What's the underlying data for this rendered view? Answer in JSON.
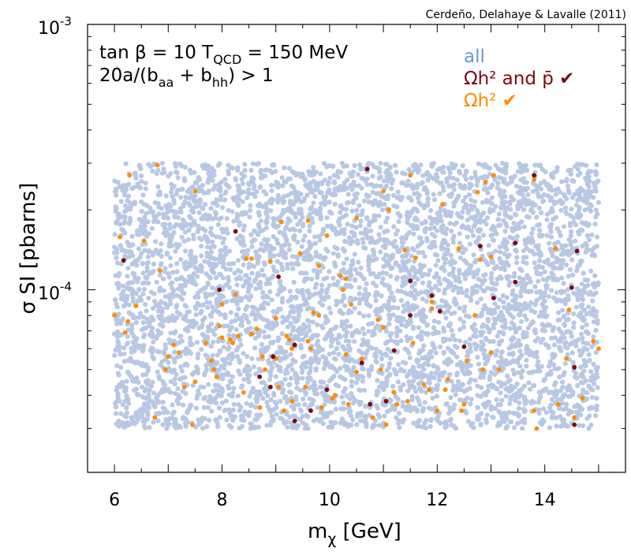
{
  "chart_data": {
    "type": "scatter",
    "credit": "Cerdeño, Delahaye & Lavalle (2011)",
    "annotation": {
      "line1_a": "tan β = 10  T",
      "line1_sub": "QCD",
      "line1_b": " = 150 MeV",
      "line2_a": " 20a/(b",
      "line2_sub1": "aa",
      "line2_mid": " + b",
      "line2_sub2": "hh",
      "line2_b": ") > 1"
    },
    "xlabel_main": "m",
    "xlabel_sub": "χ",
    "xlabel_unit": " [GeV]",
    "ylabel": "σ SI [pbarns]",
    "x_axis": {
      "scale": "linear",
      "range": [
        5.5,
        15.5
      ],
      "ticks": [
        6,
        8,
        10,
        12,
        14
      ],
      "tick_labels": [
        "6",
        "8",
        "10",
        "12",
        "14"
      ]
    },
    "y_axis": {
      "scale": "log",
      "range": [
        2.05e-05,
        0.001
      ],
      "ticks": [
        0.0001,
        0.001
      ],
      "tick_labels": [
        {
          "base": "10",
          "exp": "-4"
        },
        {
          "base": "10",
          "exp": "-3"
        }
      ]
    },
    "series": [
      {
        "name": "all",
        "color": "#b8c8e4",
        "generated": true,
        "count": 5200,
        "x_range": [
          6.0,
          15.0
        ],
        "y_range": [
          3e-05,
          0.0003
        ],
        "y_dist": "log-uniform"
      },
      {
        "name": "Ωh² ✔",
        "color": "#ff8c00",
        "points": [
          [
            6.0,
            8e-05
          ],
          [
            6.1,
            0.000158
          ],
          [
            6.2,
            6.9e-05
          ],
          [
            6.25,
            7.6e-05
          ],
          [
            6.28,
            0.00027
          ],
          [
            6.4,
            8.7e-05
          ],
          [
            6.55,
            0.000153
          ],
          [
            6.75,
            3.3e-05
          ],
          [
            6.8,
            0.000295
          ],
          [
            6.85,
            0.000118
          ],
          [
            6.95,
            5e-05
          ],
          [
            7.0,
            5.6e-05
          ],
          [
            7.1,
            6.2e-05
          ],
          [
            7.2,
            5.8e-05
          ],
          [
            7.3,
            4.3e-05
          ],
          [
            7.45,
            3.1e-05
          ],
          [
            7.5,
            4.5e-05
          ],
          [
            7.5,
            0.000235
          ],
          [
            7.7,
            6.3e-05
          ],
          [
            7.8,
            5.4e-05
          ],
          [
            7.85,
            5e-05
          ],
          [
            7.9,
            4.7e-05
          ],
          [
            7.95,
            7.3e-05
          ],
          [
            8.0,
            6.6e-05
          ],
          [
            8.0,
            8.8e-05
          ],
          [
            8.15,
            6.5e-05
          ],
          [
            8.2,
            6.3e-05
          ],
          [
            8.25,
            9.6e-05
          ],
          [
            8.3,
            6.7e-05
          ],
          [
            8.4,
            4.1e-05
          ],
          [
            8.45,
            0.000131
          ],
          [
            8.55,
            6.8e-05
          ],
          [
            8.65,
            7.1e-05
          ],
          [
            8.7,
            3.6e-05
          ],
          [
            8.75,
            5.6e-05
          ],
          [
            8.8,
            5e-05
          ],
          [
            8.9,
            0.000128
          ],
          [
            9.0,
            5.5e-05
          ],
          [
            9.0,
            7.8e-05
          ],
          [
            9.05,
            4.3e-05
          ],
          [
            9.1,
            0.00018
          ],
          [
            9.15,
            3.5e-05
          ],
          [
            9.2,
            6.7e-05
          ],
          [
            9.25,
            6.5e-05
          ],
          [
            9.3,
            3.8e-05
          ],
          [
            9.3,
            6e-05
          ],
          [
            9.45,
            0.000137
          ],
          [
            9.55,
            4.3e-05
          ],
          [
            9.6,
            0.000182
          ],
          [
            9.65,
            6e-05
          ],
          [
            9.7,
            8.2e-05
          ],
          [
            9.8,
            8e-05
          ],
          [
            9.8,
            0.000123
          ],
          [
            9.85,
            3.6e-05
          ],
          [
            9.95,
            0.00016
          ],
          [
            10.05,
            3.9e-05
          ],
          [
            10.1,
            4e-05
          ],
          [
            10.2,
            0.000113
          ],
          [
            10.25,
            0.0001
          ],
          [
            10.3,
            5.7e-05
          ],
          [
            10.35,
            3.7e-05
          ],
          [
            10.4,
            8.8e-05
          ],
          [
            10.5,
            4.9e-05
          ],
          [
            10.5,
            0.000186
          ],
          [
            10.6,
            5.5e-05
          ],
          [
            10.8,
            3.3e-05
          ],
          [
            10.9,
            7.7e-05
          ],
          [
            10.95,
            5e-05
          ],
          [
            11.0,
            7.2e-05
          ],
          [
            11.0,
            0.000235
          ],
          [
            11.05,
            3.1e-05
          ],
          [
            11.1,
            0.0002
          ],
          [
            11.2,
            4.1e-05
          ],
          [
            11.25,
            3.7e-05
          ],
          [
            11.4,
            0.000141
          ],
          [
            11.45,
            3.8e-05
          ],
          [
            11.5,
            0.00027
          ],
          [
            11.55,
            6.3e-05
          ],
          [
            11.6,
            0.000132
          ],
          [
            11.75,
            4.4e-05
          ],
          [
            11.85,
            4.2e-05
          ],
          [
            11.9,
            8.5e-05
          ],
          [
            11.9,
            9e-05
          ],
          [
            12.0,
            3.5e-05
          ],
          [
            12.1,
            0.00021
          ],
          [
            12.15,
            4.2e-05
          ],
          [
            12.2,
            4.6e-05
          ],
          [
            12.4,
            0.000143
          ],
          [
            12.45,
            3.5e-05
          ],
          [
            12.5,
            3.7e-05
          ],
          [
            12.55,
            5.4e-05
          ],
          [
            12.7,
            8e-05
          ],
          [
            12.75,
            0.000233
          ],
          [
            12.8,
            0.00013
          ],
          [
            12.85,
            5e-05
          ],
          [
            12.9,
            0.000255
          ],
          [
            13.0,
            0.000133
          ],
          [
            13.0,
            5.8e-05
          ],
          [
            13.05,
            0.00027
          ],
          [
            13.15,
            5e-05
          ],
          [
            13.8,
            3.5e-05
          ],
          [
            13.85,
            3e-05
          ],
          [
            14.2,
            0.000143
          ],
          [
            14.25,
            3.7e-05
          ],
          [
            14.4,
            5.5e-05
          ],
          [
            14.45,
            8.4e-05
          ],
          [
            14.55,
            3.3e-05
          ],
          [
            14.7,
            3.9e-05
          ],
          [
            14.9,
            6.4e-05
          ],
          [
            15.0,
            6e-05
          ],
          [
            13.8,
            0.00026
          ],
          [
            10.3,
            0.00011
          ],
          [
            8.55,
            0.000131
          ],
          [
            9.6,
            6.4e-05
          ]
        ]
      },
      {
        "name": "Ωh² and p̄ ✔",
        "color": "#7b0a14",
        "points": [
          [
            6.17,
            0.000129
          ],
          [
            7.95,
            0.0001
          ],
          [
            8.25,
            0.000166
          ],
          [
            8.7,
            4.7e-05
          ],
          [
            8.95,
            5.6e-05
          ],
          [
            9.05,
            0.000112
          ],
          [
            9.35,
            6.2e-05
          ],
          [
            9.35,
            3.2e-05
          ],
          [
            9.65,
            3.5e-05
          ],
          [
            9.95,
            4.2e-05
          ],
          [
            10.6,
            5.3e-05
          ],
          [
            10.7,
            0.000285
          ],
          [
            10.75,
            3.7e-05
          ],
          [
            11.05,
            3.8e-05
          ],
          [
            11.2,
            5.9e-05
          ],
          [
            11.5,
            0.000108
          ],
          [
            11.9,
            9.5e-05
          ],
          [
            12.05,
            8.3e-05
          ],
          [
            12.5,
            6.1e-05
          ],
          [
            12.8,
            0.000146
          ],
          [
            13.05,
            9.3e-05
          ],
          [
            13.45,
            0.00015
          ],
          [
            13.45,
            0.000107
          ],
          [
            13.8,
            0.00027
          ],
          [
            14.5,
            0.000102
          ],
          [
            14.55,
            5.1e-05
          ],
          [
            14.6,
            0.00014
          ],
          [
            14.55,
            3.1e-05
          ],
          [
            11.5,
            8e-05
          ],
          [
            8.9,
            4.3e-05
          ]
        ]
      }
    ]
  }
}
